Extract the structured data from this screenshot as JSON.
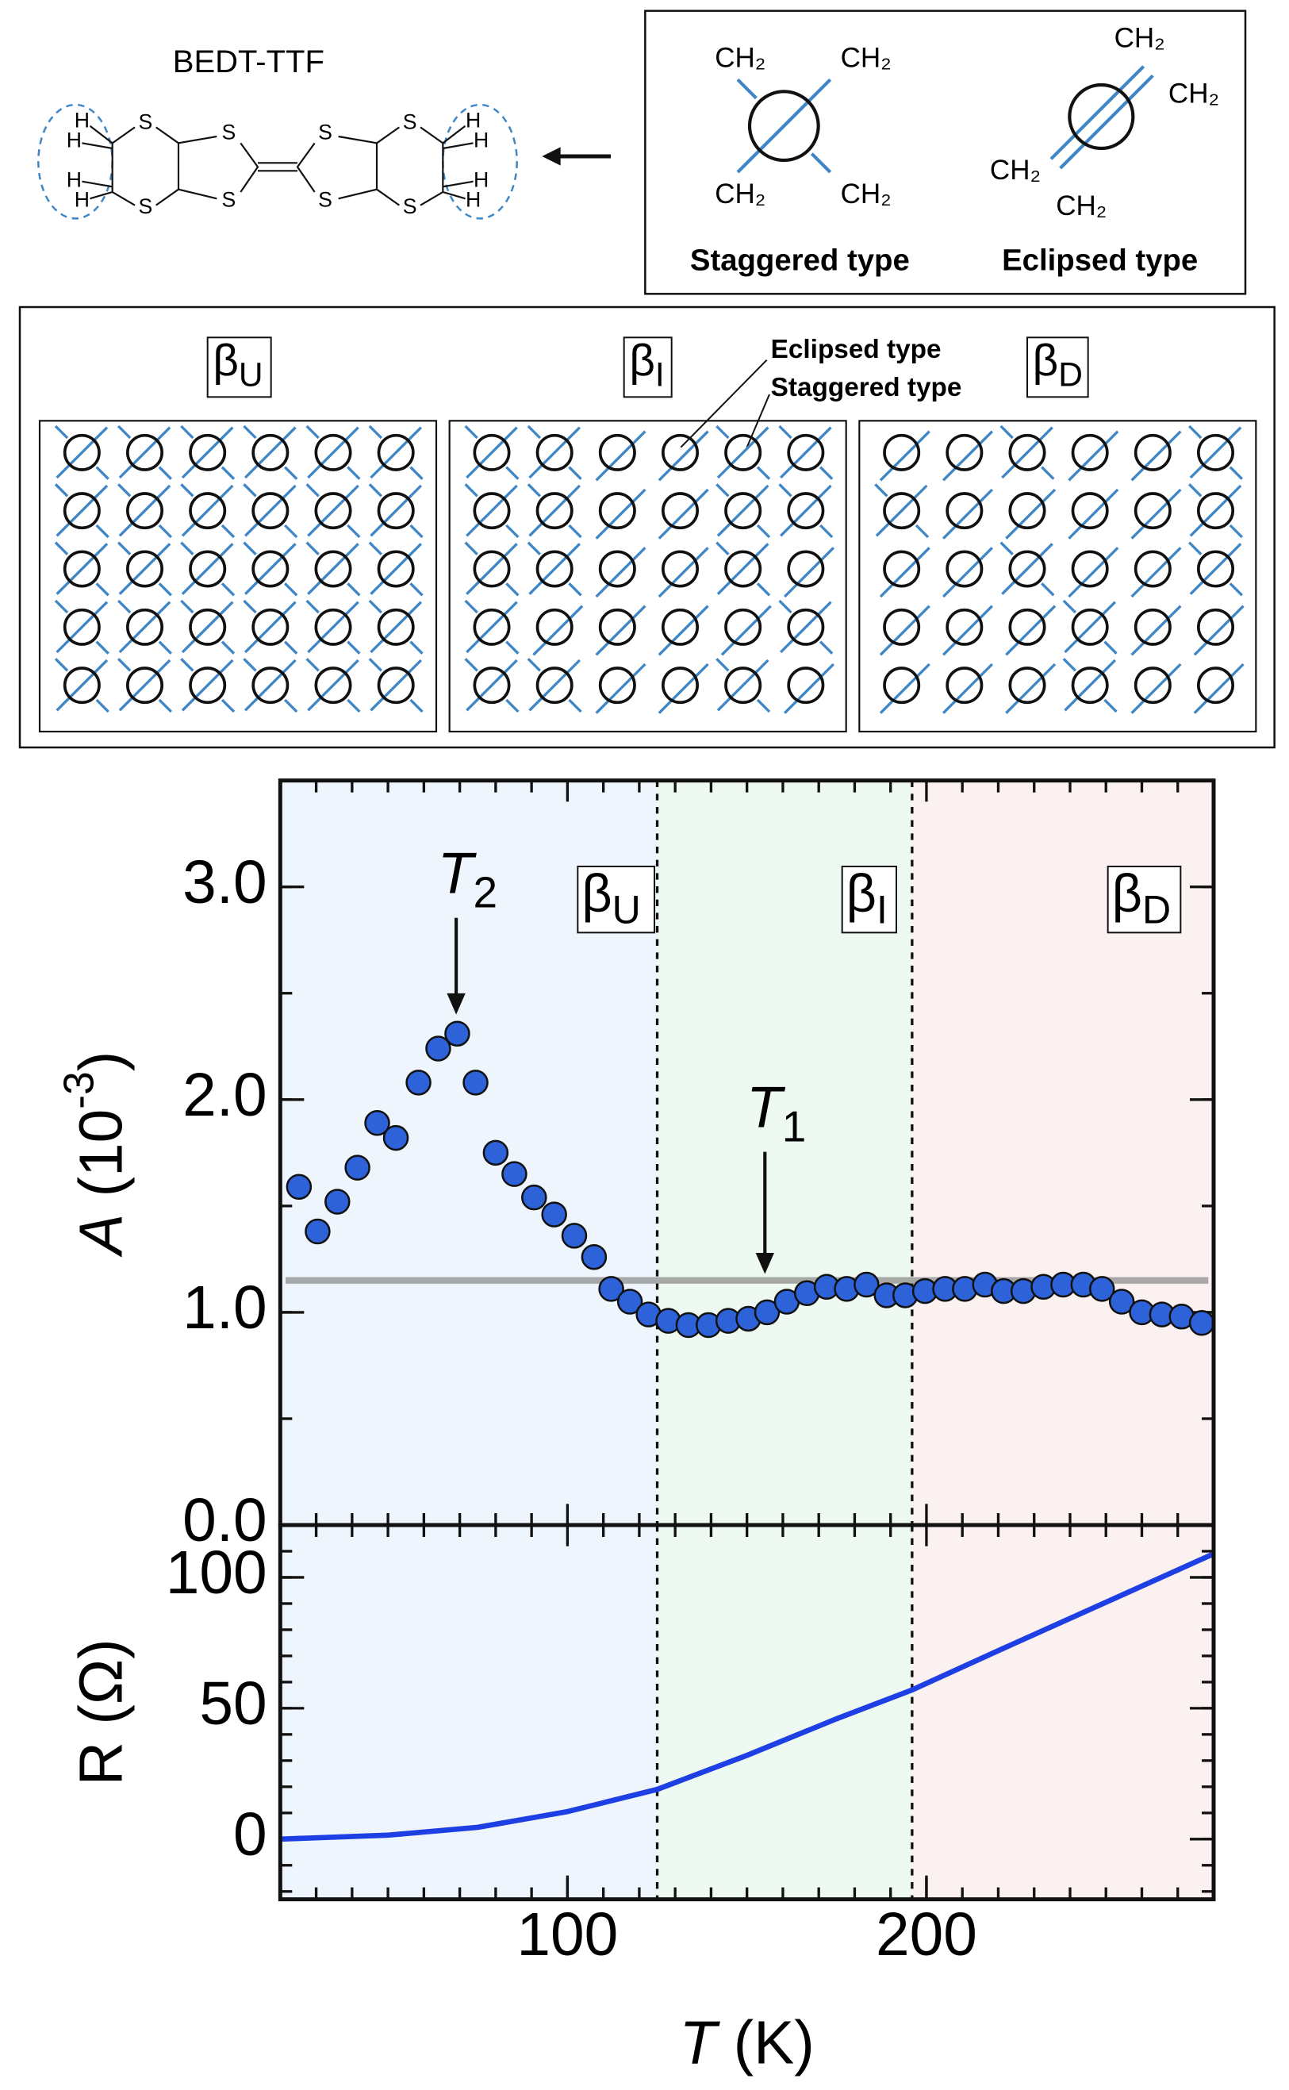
{
  "molecule": {
    "name": "BEDT-TTF",
    "atoms": [
      "S",
      "S",
      "S",
      "S",
      "S",
      "S",
      "S",
      "S",
      "H",
      "H",
      "H",
      "H",
      "H",
      "H",
      "H",
      "H"
    ]
  },
  "conformations": [
    {
      "label": "Staggered type",
      "groups": [
        "CH₂",
        "CH₂",
        "CH₂",
        "CH₂"
      ]
    },
    {
      "label": "Eclipsed type",
      "groups": [
        "CH₂",
        "CH₂",
        "CH₂",
        "CH₂"
      ]
    }
  ],
  "phases": {
    "panels": [
      {
        "base": "β",
        "sub": "U"
      },
      {
        "base": "β",
        "sub": "I"
      },
      {
        "base": "β",
        "sub": "D"
      }
    ],
    "callouts": [
      "Eclipsed type",
      "Staggered type"
    ]
  },
  "chart_data": [
    {
      "type": "scatter",
      "x": [
        25.2,
        30.4,
        35.9,
        41.5,
        47,
        52.2,
        58.5,
        64,
        69.3,
        74.4,
        80,
        85.2,
        90.7,
        96.3,
        101.9,
        107.4,
        112.2,
        117.4,
        122.6,
        128.1,
        133.7,
        139.3,
        144.8,
        150.4,
        155.6,
        161.1,
        166.7,
        172.2,
        177.8,
        183.3,
        188.9,
        194.1,
        199.6,
        205.2,
        210.7,
        216.3,
        221.5,
        227,
        232.6,
        238.1,
        243.7,
        248.9,
        254.4,
        260,
        265.6,
        271.1,
        276.7
      ],
      "values": [
        1.59,
        1.38,
        1.52,
        1.68,
        1.89,
        1.82,
        2.08,
        2.24,
        2.31,
        2.08,
        1.75,
        1.65,
        1.54,
        1.46,
        1.36,
        1.26,
        1.11,
        1.05,
        0.99,
        0.96,
        0.94,
        0.94,
        0.96,
        0.97,
        1.0,
        1.05,
        1.09,
        1.12,
        1.11,
        1.13,
        1.08,
        1.08,
        1.1,
        1.11,
        1.11,
        1.13,
        1.1,
        1.1,
        1.12,
        1.13,
        1.13,
        1.11,
        1.05,
        1.0,
        0.99,
        0.98,
        0.95
      ],
      "color": "#2d62d9",
      "xlim": [
        20,
        280
      ],
      "xminor": 10,
      "ylim": [
        0,
        3.5
      ],
      "yticks": [
        {
          "value": 0,
          "label": "0.0"
        },
        {
          "value": 1,
          "label": "1.0"
        },
        {
          "value": 2,
          "label": "2.0"
        },
        {
          "value": 3,
          "label": "3.0"
        }
      ],
      "yminor": 0.5,
      "y_label": {
        "italic": "A",
        "text": " (10",
        "sup": "-3",
        "close": ")"
      },
      "reference_line": 1.15,
      "boundaries": [
        125,
        196
      ],
      "regions": [
        {
          "base": "β",
          "sub": "U",
          "color": "#eef5fd"
        },
        {
          "base": "β",
          "sub": "I",
          "color": "#eefaf1"
        },
        {
          "base": "β",
          "sub": "D",
          "color": "#fcf1f1"
        }
      ],
      "annotations": [
        {
          "text": "T",
          "sub": "2"
        },
        {
          "text": "T",
          "sub": "1"
        }
      ]
    },
    {
      "type": "line",
      "x": [
        20,
        50,
        75,
        100,
        125,
        150,
        175,
        196,
        220,
        250,
        280
      ],
      "values": [
        0,
        1.5,
        4.5,
        10.5,
        19,
        32,
        46,
        57,
        72,
        90.5,
        109
      ],
      "color": "#1d3fe3",
      "xlim": [
        20,
        280
      ],
      "xticks": [
        100,
        200
      ],
      "xminor": 10,
      "ylim": [
        -23,
        120
      ],
      "yticks": [
        0,
        50,
        100
      ],
      "yminor": 10,
      "y_label": "R (Ω)",
      "x_label": {
        "italic": "T",
        "text": " (K)"
      },
      "boundaries": [
        125,
        196
      ],
      "regions": [
        {
          "color": "#eef5fd"
        },
        {
          "color": "#eefaf1"
        },
        {
          "color": "#fcf1f1"
        }
      ]
    }
  ]
}
